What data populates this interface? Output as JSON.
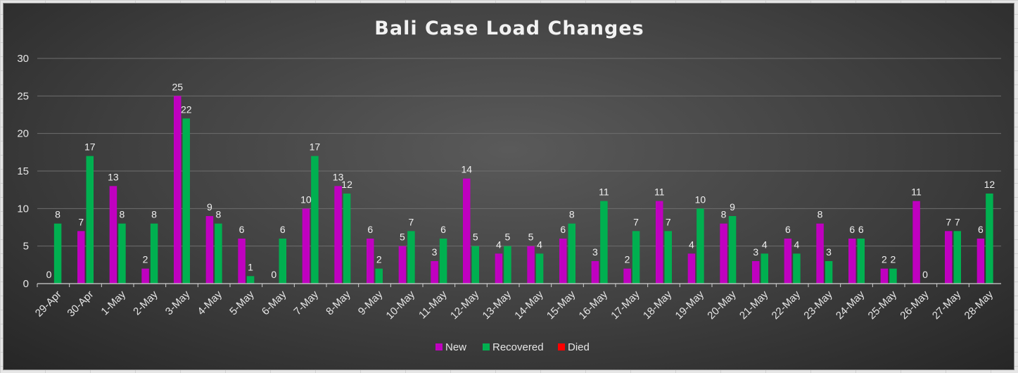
{
  "chart_data": {
    "type": "bar",
    "title": "Bali Case Load Changes",
    "xlabel": "",
    "ylabel": "",
    "ylim": [
      0,
      30
    ],
    "yticks": [
      0,
      5,
      10,
      15,
      20,
      25,
      30
    ],
    "grid": true,
    "legend_position": "bottom",
    "categories": [
      "29-Apr",
      "30-Apr",
      "1-May",
      "2-May",
      "3-May",
      "4-May",
      "5-May",
      "6-May",
      "7-May",
      "8-May",
      "9-May",
      "10-May",
      "11-May",
      "12-May",
      "13-May",
      "14-May",
      "15-May",
      "16-May",
      "17-May",
      "18-May",
      "19-May",
      "20-May",
      "21-May",
      "22-May",
      "23-May",
      "24-May",
      "25-May",
      "26-May",
      "27-May",
      "28-May"
    ],
    "series": [
      {
        "name": "New",
        "color": "#c000c0",
        "values": [
          0,
          7,
          13,
          2,
          25,
          9,
          6,
          0,
          10,
          13,
          6,
          5,
          3,
          14,
          4,
          5,
          6,
          3,
          2,
          11,
          4,
          8,
          3,
          6,
          8,
          6,
          2,
          11,
          7,
          6
        ]
      },
      {
        "name": "Recovered",
        "color": "#00b050",
        "values": [
          8,
          17,
          8,
          8,
          22,
          8,
          1,
          6,
          17,
          12,
          2,
          7,
          6,
          5,
          5,
          4,
          8,
          11,
          7,
          7,
          10,
          9,
          4,
          4,
          3,
          6,
          2,
          0,
          7,
          12
        ]
      },
      {
        "name": "Died",
        "color": "#ff0000",
        "values": [
          0,
          0,
          0,
          0,
          0,
          0,
          0,
          0,
          0,
          0,
          0,
          0,
          0,
          0,
          0,
          0,
          0,
          0,
          0,
          0,
          0,
          0,
          0,
          0,
          0,
          0,
          0,
          0,
          0,
          0
        ]
      }
    ]
  }
}
